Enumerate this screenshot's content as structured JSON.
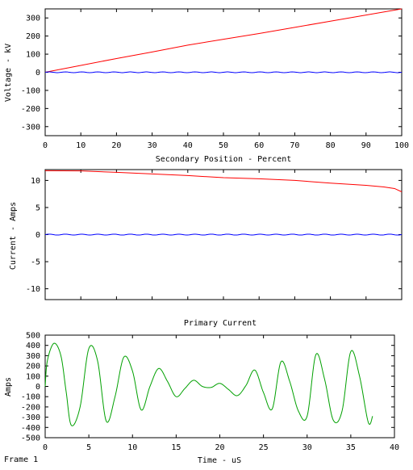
{
  "footer": {
    "frame_label": "Frame 1"
  },
  "chart_data": [
    {
      "type": "line",
      "title": "",
      "xlabel": "Secondary Position - Percent",
      "ylabel": "Voltage - kV",
      "xlim": [
        0,
        100
      ],
      "ylim": [
        -350,
        350
      ],
      "xticks": [
        0,
        10,
        20,
        30,
        40,
        50,
        60,
        70,
        80,
        90,
        100
      ],
      "yticks": [
        -300,
        -200,
        -100,
        0,
        100,
        200,
        300
      ],
      "grid": false,
      "series": [
        {
          "color": "#ff0000",
          "style": "line",
          "x": [
            0,
            10,
            20,
            30,
            40,
            50,
            60,
            70,
            80,
            90,
            100
          ],
          "y": [
            0,
            38,
            76,
            112,
            150,
            182,
            214,
            248,
            282,
            316,
            350
          ]
        },
        {
          "color": "#0000ff",
          "style": "wave",
          "amplitude": 2,
          "cycles": 22,
          "x": [
            0,
            100
          ],
          "y": [
            0,
            0
          ]
        }
      ]
    },
    {
      "type": "line",
      "title": "Primary Current",
      "xlabel": "",
      "ylabel": "Current - Amps",
      "xlim": [
        0,
        100
      ],
      "ylim": [
        -12,
        12
      ],
      "xticks": [
        0,
        10,
        20,
        30,
        40,
        50,
        60,
        70,
        80,
        90,
        100
      ],
      "yticks": [
        -10,
        -5,
        0,
        5,
        10
      ],
      "show_x_tick_labels": false,
      "grid": false,
      "series": [
        {
          "color": "#ff0000",
          "style": "line",
          "x": [
            0,
            10,
            20,
            30,
            40,
            50,
            60,
            70,
            80,
            90,
            95,
            98,
            100
          ],
          "y": [
            11.8,
            11.75,
            11.5,
            11.2,
            10.9,
            10.5,
            10.3,
            10.0,
            9.5,
            9.1,
            8.8,
            8.5,
            7.9
          ]
        },
        {
          "color": "#0000ff",
          "style": "wave",
          "amplitude": 0.08,
          "cycles": 22,
          "x": [
            0,
            100
          ],
          "y": [
            0,
            0
          ]
        }
      ]
    },
    {
      "type": "line",
      "title": "",
      "xlabel": "Time - uS",
      "ylabel": "Amps",
      "xlim": [
        0,
        40
      ],
      "ylim": [
        -500,
        500
      ],
      "xticks": [
        0,
        5,
        10,
        15,
        20,
        25,
        30,
        35,
        40
      ],
      "yticks": [
        -500,
        -400,
        -300,
        -200,
        -100,
        0,
        100,
        200,
        300,
        400,
        500
      ],
      "grid": false,
      "series": [
        {
          "color": "#00a000",
          "style": "line",
          "x": [
            0,
            0.25,
            1,
            1.8,
            2.4,
            3,
            4,
            5,
            6,
            7,
            8,
            9,
            10,
            11,
            12,
            13,
            14,
            15,
            16,
            17,
            18,
            19,
            20,
            21,
            22,
            23,
            24,
            25,
            26,
            27,
            28,
            29,
            30,
            31,
            32,
            33,
            34,
            35,
            36,
            37,
            37.5
          ],
          "y": [
            0,
            250,
            420,
            300,
            -50,
            -380,
            -200,
            370,
            250,
            -340,
            -100,
            285,
            150,
            -230,
            0,
            175,
            50,
            -100,
            -20,
            60,
            0,
            -10,
            30,
            -30,
            -90,
            10,
            160,
            -60,
            -220,
            240,
            50,
            -240,
            -290,
            310,
            70,
            -330,
            -240,
            340,
            100,
            -350,
            -290
          ]
        }
      ]
    }
  ]
}
